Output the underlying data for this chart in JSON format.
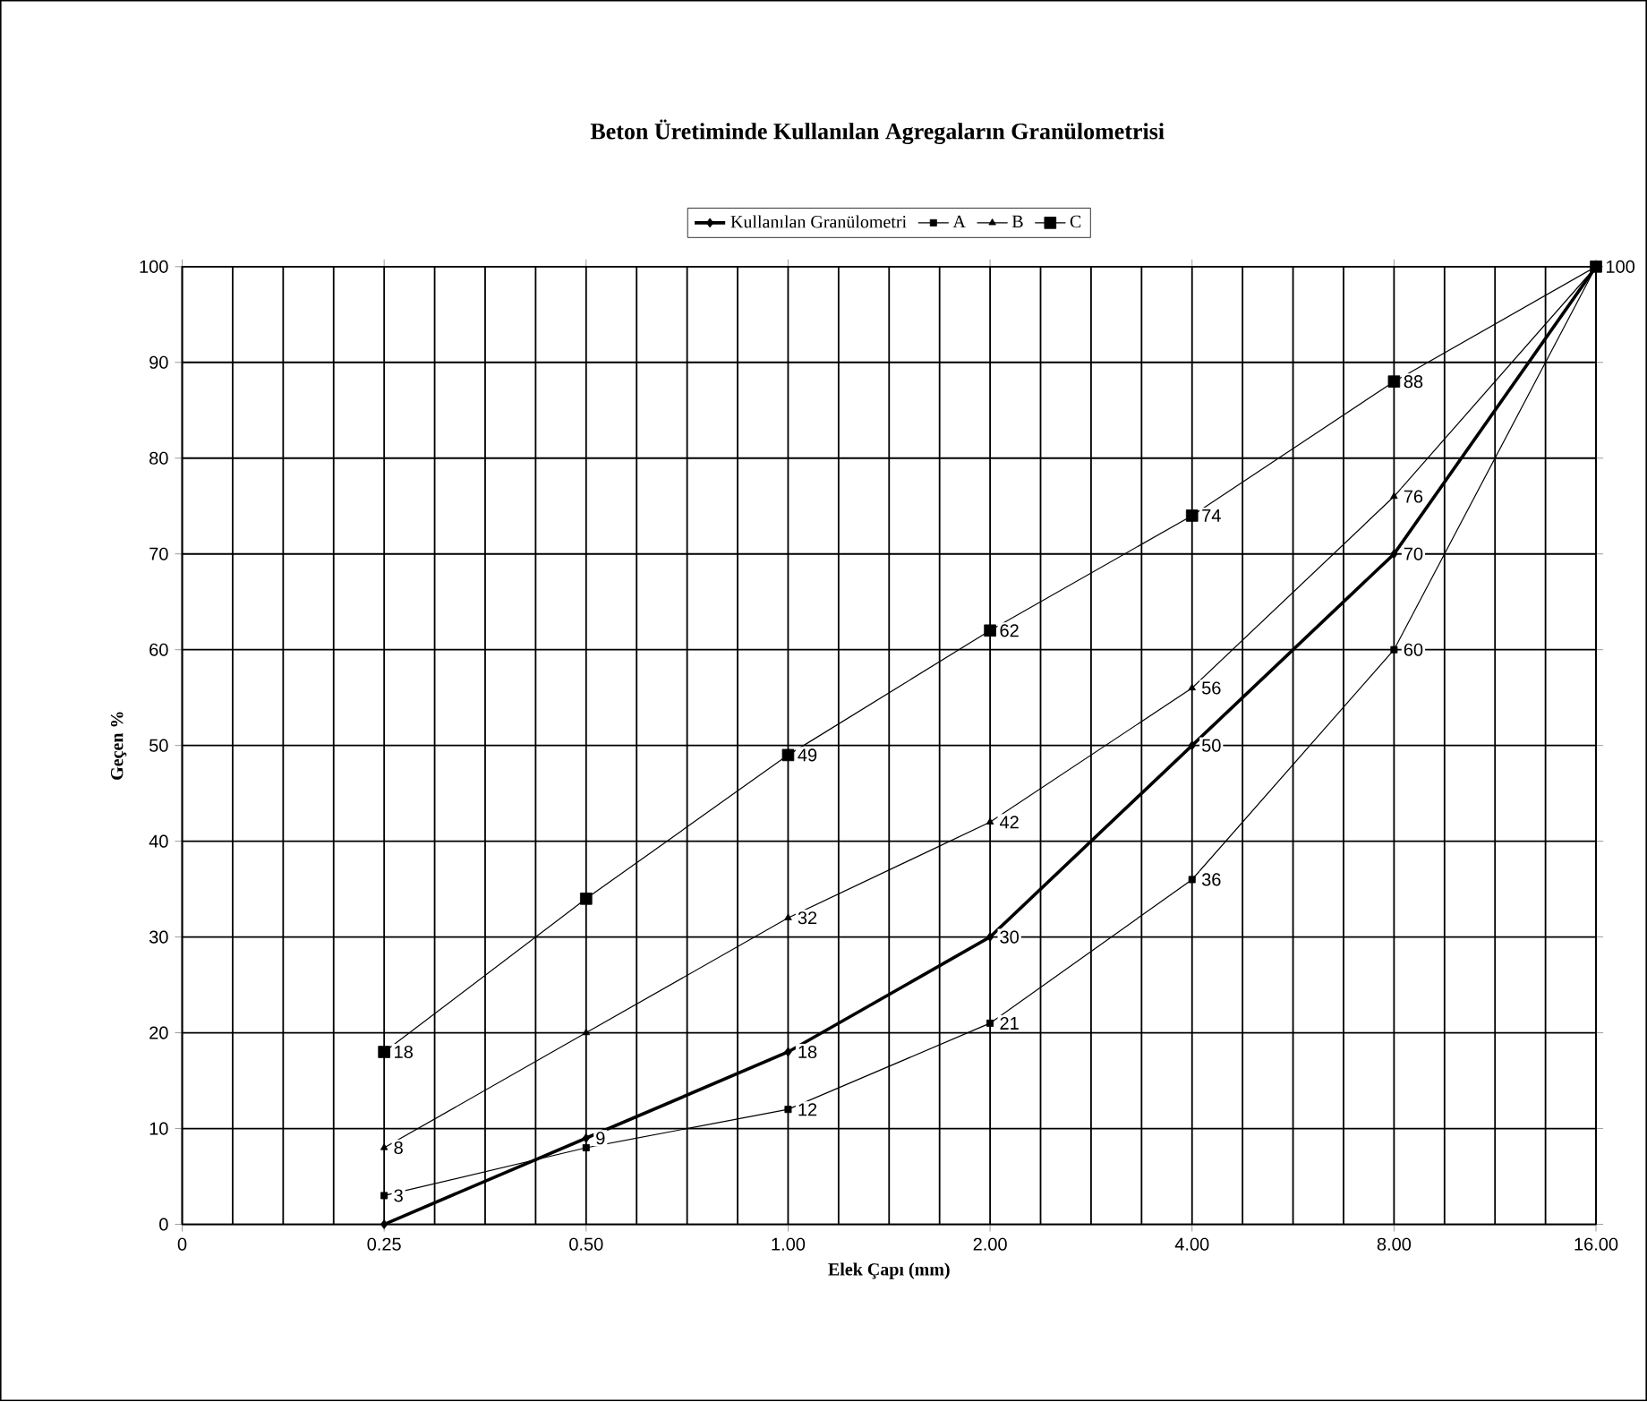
{
  "chart_data": {
    "type": "line",
    "title": "Beton Üretiminde Kullanılan Agregaların Granülometrisi",
    "xlabel": "Elek Çapı (mm)",
    "ylabel": "Geçen %",
    "categories": [
      "0",
      "0.25",
      "0.50",
      "1.00",
      "2.00",
      "4.00",
      "8.00",
      "16.00"
    ],
    "series": [
      {
        "name": "Kullanılan Granülometri",
        "color": "#000000",
        "marker": "diamond",
        "values": [
          null,
          0,
          9,
          18,
          30,
          50,
          70,
          100
        ],
        "value_labels": [
          null,
          null,
          "9",
          "18",
          "30",
          "50",
          "70",
          null
        ]
      },
      {
        "name": "A",
        "color": "#000000",
        "marker": "square",
        "values": [
          null,
          3,
          8,
          12,
          21,
          36,
          60,
          100
        ],
        "value_labels": [
          null,
          "3",
          null,
          "12",
          "21",
          "36",
          "60",
          null
        ]
      },
      {
        "name": "B",
        "color": "#000000",
        "marker": "triangle",
        "values": [
          null,
          8,
          20,
          32,
          42,
          56,
          76,
          100
        ],
        "value_labels": [
          null,
          "8",
          null,
          "32",
          "42",
          "56",
          "76",
          null
        ]
      },
      {
        "name": "C",
        "color": "#000000",
        "marker": "square",
        "values": [
          null,
          18,
          34,
          49,
          62,
          74,
          88,
          100
        ],
        "value_labels": [
          null,
          "18",
          null,
          "49",
          "62",
          "74",
          "88",
          "100"
        ]
      }
    ],
    "ylim": [
      0,
      100
    ],
    "yticks": [
      0,
      10,
      20,
      30,
      40,
      50,
      60,
      70,
      80,
      90,
      100
    ],
    "grid": true,
    "legend": "top"
  }
}
